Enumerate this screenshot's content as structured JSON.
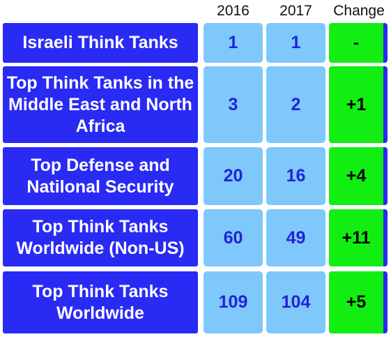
{
  "chart_data": {
    "type": "table",
    "columns": [
      "2016",
      "2017",
      "Change"
    ],
    "rows": [
      {
        "label": "Israeli Think Tanks",
        "y2016": "1",
        "y2017": "1",
        "change": "-"
      },
      {
        "label": "Top Think Tanks in the Middle East and North Africa",
        "y2016": "3",
        "y2017": "2",
        "change": "+1"
      },
      {
        "label": "Top Defense and Natilonal Security",
        "y2016": "20",
        "y2017": "16",
        "change": "+4"
      },
      {
        "label": "Top Think Tanks Worldwide (Non-US)",
        "y2016": "60",
        "y2017": "49",
        "change": "+11"
      },
      {
        "label": "Top Think Tanks Worldwide",
        "y2016": "109",
        "y2017": "104",
        "change": "+5"
      }
    ]
  },
  "colors": {
    "category_bg": "#2a2af5",
    "value_bg": "#7ec8fb",
    "value_text": "#2222d8",
    "change_bg": "#12ee12"
  }
}
